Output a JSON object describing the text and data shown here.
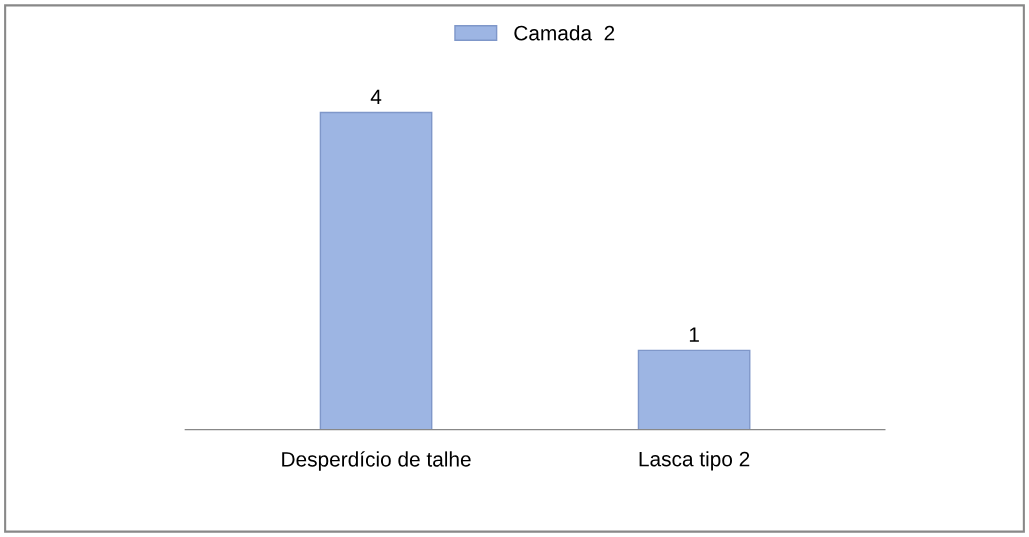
{
  "chart_data": {
    "type": "bar",
    "categories": [
      "Desperdício de talhe",
      "Lasca tipo 2"
    ],
    "series": [
      {
        "name": "Camada  2",
        "color": "#9db5e3",
        "values": [
          4,
          1
        ]
      }
    ],
    "data_labels": true,
    "legend": "top",
    "tick_labels": "x",
    "grid": false
  }
}
